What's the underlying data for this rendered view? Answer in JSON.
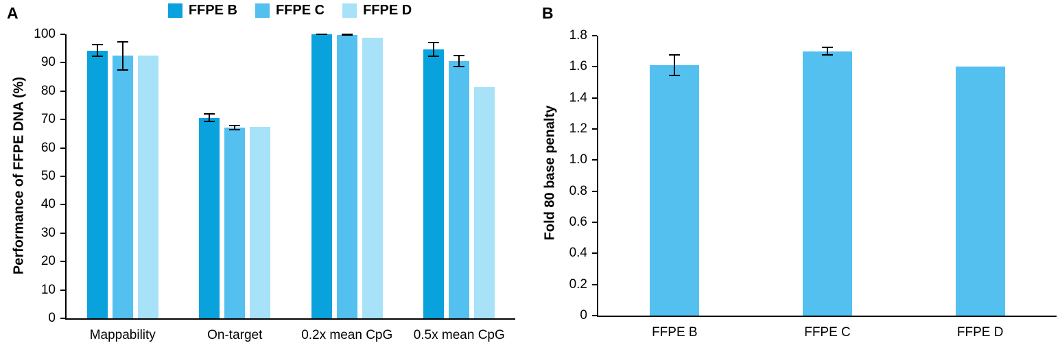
{
  "figure": {
    "background": "#ffffff",
    "axis_color": "#000000",
    "text_color": "#000000"
  },
  "chart_data": [
    {
      "type": "bar",
      "panel_label": "A",
      "title": "",
      "xlabel": "",
      "ylabel": "Performance of FFPE DNA (%)",
      "ylim": [
        0,
        100
      ],
      "ytick_values": [
        0,
        10,
        20,
        30,
        40,
        50,
        60,
        70,
        80,
        90,
        100
      ],
      "ytick_labels": [
        "0",
        "10",
        "20",
        "30",
        "40",
        "50",
        "60",
        "70",
        "80",
        "90",
        "100"
      ],
      "grid": false,
      "legend_position": "top-center",
      "categories": [
        "Mappability",
        "On-target",
        "0.2x mean CpG",
        "0.5x mean CpG"
      ],
      "series": [
        {
          "name": "FFPE B",
          "color": "#09a2dc",
          "values": [
            94.3,
            70.6,
            100.0,
            94.7
          ],
          "errors": [
            2.2,
            1.6,
            0.3,
            2.6
          ]
        },
        {
          "name": "FFPE C",
          "color": "#54c0f0",
          "values": [
            92.4,
            67.2,
            99.8,
            90.6
          ],
          "errors": [
            5.1,
            0.9,
            0.4,
            2.2
          ]
        },
        {
          "name": "FFPE D",
          "color": "#a7e2f8",
          "values": [
            92.6,
            67.5,
            98.8,
            81.5
          ],
          "errors": [
            null,
            null,
            null,
            null
          ]
        }
      ]
    },
    {
      "type": "bar",
      "panel_label": "B",
      "title": "",
      "xlabel": "",
      "ylabel": "Fold 80 base penalty",
      "ylim": [
        0,
        1.8
      ],
      "ytick_values": [
        0,
        0.2,
        0.4,
        0.6,
        0.8,
        1.0,
        1.2,
        1.4,
        1.6,
        1.8
      ],
      "ytick_labels": [
        "0",
        "0.2",
        "0.4",
        "0.6",
        "0.8",
        "1.0",
        "1.2",
        "1.4",
        "1.6",
        "1.8"
      ],
      "grid": false,
      "legend_position": "none",
      "categories": [
        "FFPE B",
        "FFPE C",
        "FFPE D"
      ],
      "series": [
        {
          "name": "",
          "color": "#54c0f0",
          "values": [
            1.61,
            1.7,
            1.6
          ],
          "errors": [
            0.07,
            0.03,
            null
          ]
        }
      ]
    }
  ]
}
